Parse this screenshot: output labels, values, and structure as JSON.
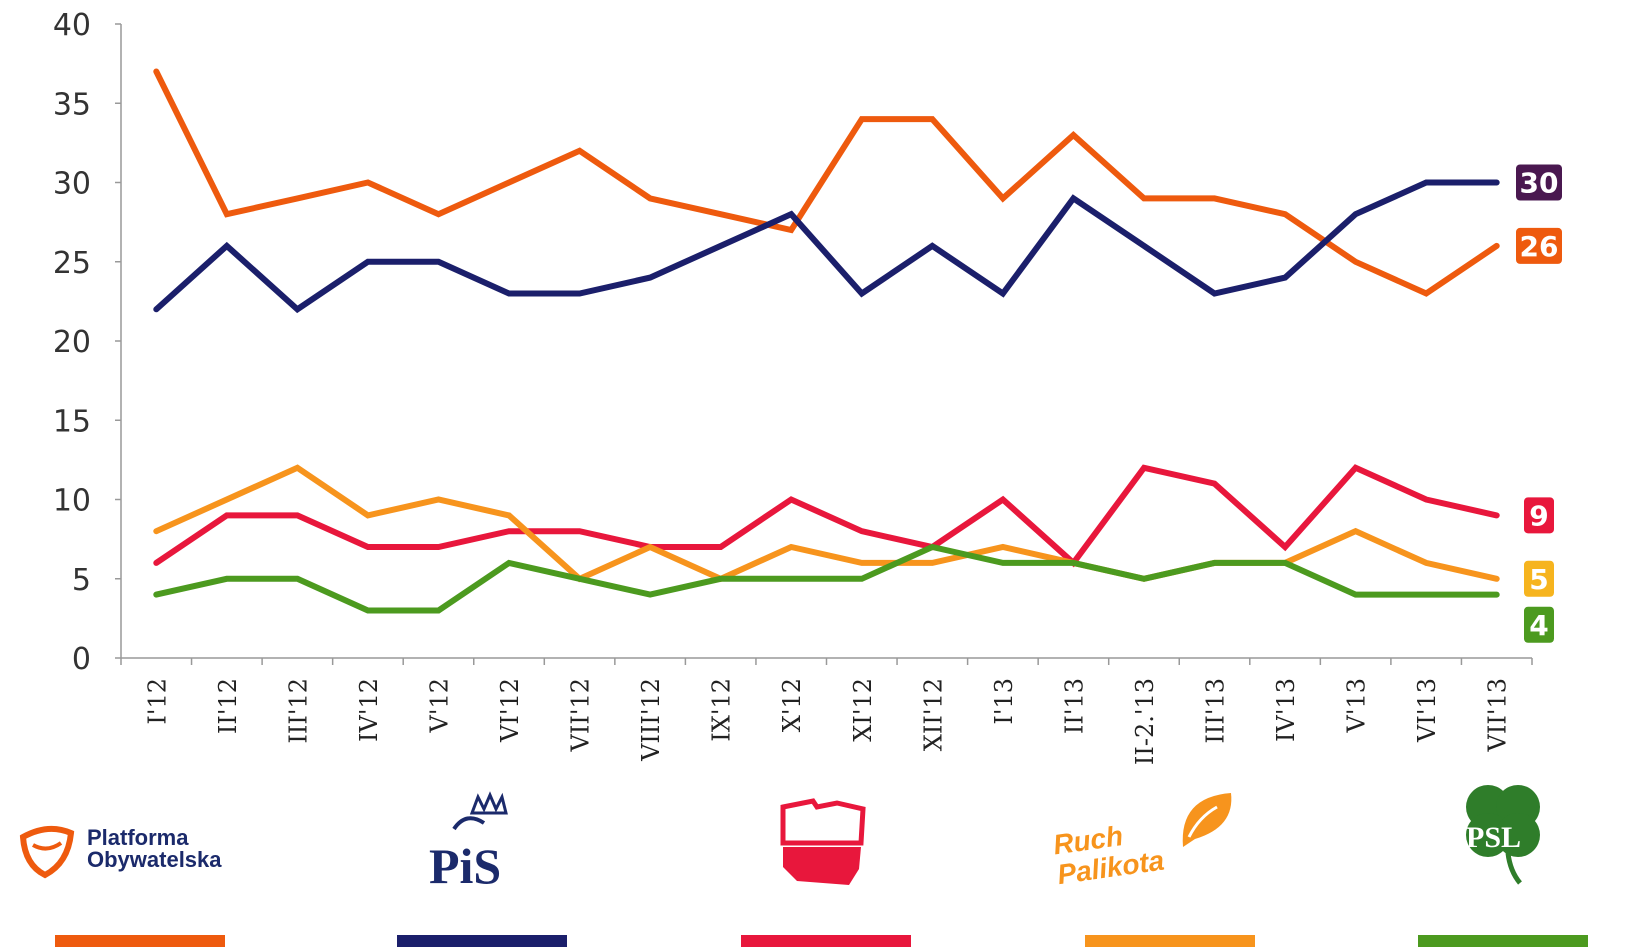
{
  "chart_data": {
    "type": "line",
    "categories": [
      "I'12",
      "II'12",
      "III'12",
      "IV'12",
      "V'12",
      "VI'12",
      "VII'12",
      "VIII'12",
      "IX'12",
      "X'12",
      "XI'12",
      "XII'12",
      "I'13",
      "II'13",
      "II-2.'13",
      "III'13",
      "IV'13",
      "V'13",
      "VI'13",
      "VII'13"
    ],
    "ylim": [
      0,
      40
    ],
    "yticks": [
      0,
      5,
      10,
      15,
      20,
      25,
      30,
      35,
      40
    ],
    "grid": false,
    "series": [
      {
        "color": "#EE5A0E",
        "values": [
          37,
          28,
          29,
          30,
          28,
          30,
          32,
          29,
          28,
          27,
          34,
          34,
          29,
          33,
          29,
          29,
          28,
          25,
          23,
          26
        ],
        "end_label": "26"
      },
      {
        "color": "#1B1F6B",
        "values": [
          22,
          26,
          22,
          25,
          25,
          23,
          23,
          24,
          26,
          28,
          23,
          26,
          23,
          29,
          26,
          23,
          24,
          28,
          30,
          30
        ],
        "end_label": "30",
        "label_color": "#4A1850"
      },
      {
        "color": "#E8173C",
        "values": [
          6,
          9,
          9,
          7,
          7,
          8,
          8,
          7,
          7,
          10,
          8,
          7,
          10,
          6,
          12,
          11,
          7,
          12,
          10,
          9
        ],
        "end_label": "9"
      },
      {
        "color": "#F7941D",
        "values": [
          8,
          10,
          12,
          9,
          10,
          9,
          5,
          7,
          5,
          7,
          6,
          6,
          7,
          6,
          5,
          6,
          6,
          8,
          6,
          5
        ],
        "end_label": "5",
        "label_color": "#F6B41E"
      },
      {
        "color": "#4C9A1F",
        "values": [
          4,
          5,
          5,
          3,
          3,
          6,
          5,
          4,
          5,
          5,
          5,
          7,
          6,
          6,
          5,
          6,
          6,
          4,
          4,
          4
        ],
        "end_label": "4"
      }
    ]
  },
  "legend": [
    {
      "logo_icon": "platforma-obywatelska-logo-icon",
      "text": [
        "Platforma",
        "Obywatelska"
      ],
      "bar_color": "#EE5A0E"
    },
    {
      "logo_icon": "pis-logo-icon",
      "text": [
        "PiS"
      ],
      "bar_color": "#1B1F6B"
    },
    {
      "logo_icon": "sld-logo-icon",
      "text": [],
      "bar_color": "#E8173C"
    },
    {
      "logo_icon": "ruch-palikota-logo-icon",
      "text": [
        "Ruch",
        "Palikota"
      ],
      "bar_color": "#F7941D"
    },
    {
      "logo_icon": "psl-logo-icon",
      "text": [
        "PSL"
      ],
      "bar_color": "#4C9A1F"
    }
  ]
}
